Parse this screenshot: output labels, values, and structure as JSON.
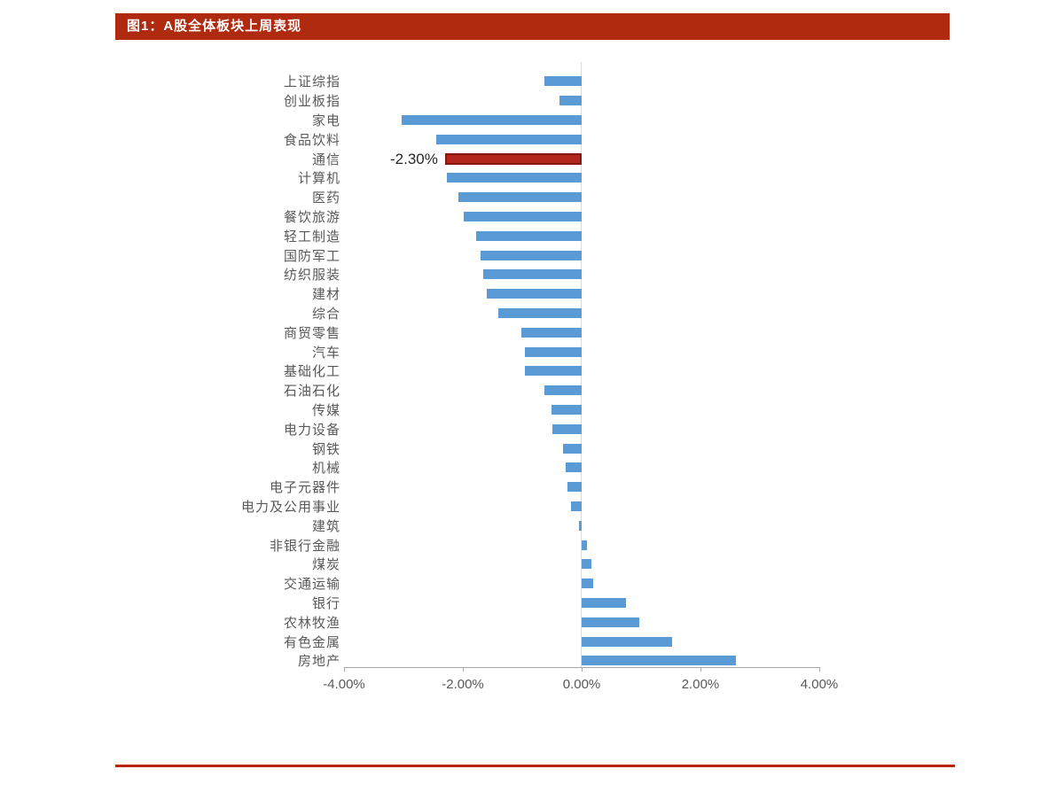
{
  "header": {
    "title": "图1：A股全体板块上周表现"
  },
  "colors": {
    "header_bg": "#b02a10",
    "bar_blue": "#5b9bd5",
    "bar_red": "#b2251c",
    "bar_red_border": "#86190e",
    "divider_red": "#b9250b",
    "axis_gray": "#a6a6a6",
    "label_gray": "#595959"
  },
  "chart_data": {
    "type": "bar",
    "orientation": "horizontal",
    "title": "图1：A股全体板块上周表现",
    "xlabel": "",
    "ylabel": "",
    "xlim": [
      -4,
      4
    ],
    "x_ticks": [
      "-4.00%",
      "-2.00%",
      "0.00%",
      "2.00%",
      "4.00%"
    ],
    "grid": "zero-line-only",
    "legend": "none",
    "unit": "%",
    "categories": [
      "上证综指",
      "创业板指",
      "家电",
      "食品饮料",
      "通信",
      "计算机",
      "医药",
      "餐饮旅游",
      "轻工制造",
      "国防军工",
      "纺织服装",
      "建材",
      "综合",
      "商贸零售",
      "汽车",
      "基础化工",
      "石油石化",
      "传媒",
      "电力设备",
      "钢铁",
      "机械",
      "电子元器件",
      "电力及公用事业",
      "建筑",
      "非银行金融",
      "煤炭",
      "交通运输",
      "银行",
      "农林牧渔",
      "有色金属",
      "房地产"
    ],
    "values": [
      -0.63,
      -0.37,
      -3.03,
      -2.45,
      -2.3,
      -2.27,
      -2.08,
      -1.99,
      -1.78,
      -1.7,
      -1.66,
      -1.6,
      -1.4,
      -1.02,
      -0.96,
      -0.95,
      -0.63,
      -0.51,
      -0.49,
      -0.31,
      -0.27,
      -0.24,
      -0.18,
      -0.05,
      0.09,
      0.16,
      0.19,
      0.75,
      0.97,
      1.52,
      2.6
    ],
    "highlight": {
      "category": "通信",
      "value": -2.3,
      "value_label": "-2.30%"
    }
  }
}
